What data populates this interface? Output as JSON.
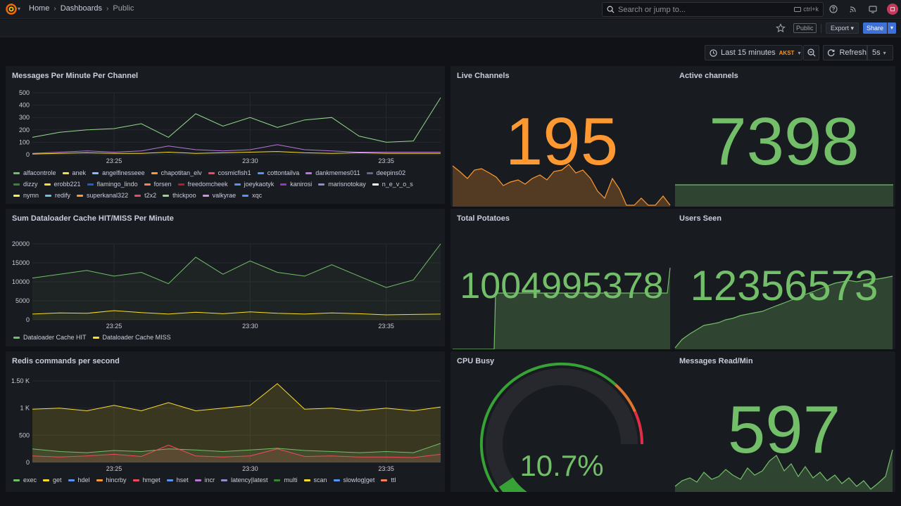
{
  "app": {
    "breadcrumb": [
      "Home",
      "Dashboards",
      "Public"
    ],
    "search_placeholder": "Search or jump to...",
    "search_shortcut": "ctrl+k",
    "icons": [
      "grafana-logo-icon",
      "help-icon",
      "rss-icon",
      "tv-icon",
      "avatar"
    ]
  },
  "toolbar": {
    "public_label": "Public",
    "export_label": "Export",
    "share_label": "Share"
  },
  "time": {
    "range_label": "Last 15 minutes",
    "timezone": "AKST",
    "refresh_label": "Refresh",
    "refresh_interval": "5s"
  },
  "colors": {
    "green": "#73bf69",
    "orange": "#ff9830",
    "yellow": "#fade2a",
    "blue": "#5794f2",
    "accent": "#3d71d9"
  },
  "panels": {
    "messages": {
      "title": "Messages Per Minute Per Channel",
      "legend": [
        {
          "name": "alfacontrole",
          "color": "#73bf69"
        },
        {
          "name": "anek",
          "color": "#fade2a"
        },
        {
          "name": "angelfinesseee",
          "color": "#8ab8ff"
        },
        {
          "name": "chapotitan_elv",
          "color": "#ff9830"
        },
        {
          "name": "cosmicfish1",
          "color": "#f2495c"
        },
        {
          "name": "cottontailva",
          "color": "#5794f2"
        },
        {
          "name": "dankmemes011",
          "color": "#b877d9"
        },
        {
          "name": "deepins02",
          "color": "#705da0"
        },
        {
          "name": "dizzy",
          "color": "#37872d"
        },
        {
          "name": "erobb221",
          "color": "#fade2a"
        },
        {
          "name": "flamingo_lindo",
          "color": "#1f60c4"
        },
        {
          "name": "forsen",
          "color": "#ff7f50"
        },
        {
          "name": "freedomcheek",
          "color": "#c4162a"
        },
        {
          "name": "joeykaotyk",
          "color": "#5794f2"
        },
        {
          "name": "kanirosi",
          "color": "#8f3bb8"
        },
        {
          "name": "marisnotokay",
          "color": "#8e8ec8"
        },
        {
          "name": "n_e_v_o_s",
          "color": "#ffffff"
        },
        {
          "name": "nymn",
          "color": "#ffee52"
        },
        {
          "name": "redify",
          "color": "#73bfde"
        },
        {
          "name": "superkanal322",
          "color": "#ff9830"
        },
        {
          "name": "t2x2",
          "color": "#f2495c"
        },
        {
          "name": "thickpoo",
          "color": "#96d98d"
        },
        {
          "name": "valkyrae",
          "color": "#ca95e5"
        },
        {
          "name": "xqc",
          "color": "#5794f2"
        }
      ]
    },
    "dataloader": {
      "title": "Sum Dataloader Cache HIT/MISS Per Minute",
      "legend": [
        {
          "name": "Dataloader Cache HIT",
          "color": "#73bf69"
        },
        {
          "name": "Dataloader Cache MISS",
          "color": "#fade2a"
        }
      ]
    },
    "redis": {
      "title": "Redis commands per second",
      "legend": [
        {
          "name": "exec",
          "color": "#73bf69"
        },
        {
          "name": "get",
          "color": "#fade2a"
        },
        {
          "name": "hdel",
          "color": "#5794f2"
        },
        {
          "name": "hincrby",
          "color": "#ff9830"
        },
        {
          "name": "hmget",
          "color": "#f2495c"
        },
        {
          "name": "hset",
          "color": "#5794f2"
        },
        {
          "name": "incr",
          "color": "#b877d9"
        },
        {
          "name": "latency|latest",
          "color": "#8e8ec8"
        },
        {
          "name": "multi",
          "color": "#37872d"
        },
        {
          "name": "scan",
          "color": "#fade2a"
        },
        {
          "name": "slowlog|get",
          "color": "#5794f2"
        },
        {
          "name": "ttl",
          "color": "#ff7f50"
        }
      ]
    },
    "live": {
      "title": "Live Channels",
      "value": "195",
      "color": "#ff9830"
    },
    "active": {
      "title": "Active channels",
      "value": "7398",
      "color": "#73bf69"
    },
    "potatoes": {
      "title": "Total Potatoes",
      "value": "1004995378",
      "color": "#73bf69"
    },
    "users": {
      "title": "Users Seen",
      "value": "12356573",
      "color": "#73bf69"
    },
    "cpu": {
      "title": "CPU Busy",
      "value": "10.7%",
      "percent": 10.7,
      "color": "#73bf69"
    },
    "msgread": {
      "title": "Messages Read/Min",
      "value": "597",
      "color": "#73bf69"
    }
  },
  "chart_data": [
    {
      "type": "line",
      "title": "Messages Per Minute Per Channel",
      "x": [
        "23:22",
        "23:23",
        "23:24",
        "23:25",
        "23:26",
        "23:27",
        "23:28",
        "23:29",
        "23:30",
        "23:31",
        "23:32",
        "23:33",
        "23:34",
        "23:35",
        "23:36",
        "23:37"
      ],
      "x_ticks": [
        "23:25",
        "23:30",
        "23:35"
      ],
      "y_ticks": [
        "0",
        "100",
        "200",
        "300",
        "400",
        "500"
      ],
      "ylim": [
        0,
        500
      ],
      "series": [
        {
          "name": "thickpoo",
          "values": [
            140,
            180,
            200,
            210,
            250,
            140,
            330,
            230,
            300,
            220,
            280,
            300,
            150,
            100,
            110,
            460
          ]
        },
        {
          "name": "dankmemes011",
          "values": [
            10,
            20,
            30,
            20,
            30,
            70,
            40,
            30,
            40,
            80,
            40,
            30,
            20,
            20,
            20,
            20
          ]
        },
        {
          "name": "anek",
          "values": [
            5,
            10,
            15,
            10,
            10,
            20,
            10,
            15,
            20,
            25,
            15,
            10,
            15,
            10,
            10,
            10
          ]
        }
      ]
    },
    {
      "type": "line",
      "title": "Sum Dataloader Cache HIT/MISS Per Minute",
      "x": [
        "23:22",
        "23:23",
        "23:24",
        "23:25",
        "23:26",
        "23:27",
        "23:28",
        "23:29",
        "23:30",
        "23:31",
        "23:32",
        "23:33",
        "23:34",
        "23:35",
        "23:36",
        "23:37"
      ],
      "x_ticks": [
        "23:25",
        "23:30",
        "23:35"
      ],
      "y_ticks": [
        "0",
        "5000",
        "10000",
        "15000",
        "20000"
      ],
      "ylim": [
        0,
        20000
      ],
      "series": [
        {
          "name": "Dataloader Cache HIT",
          "values": [
            11000,
            12000,
            13000,
            11500,
            12500,
            9500,
            16500,
            12000,
            15500,
            12500,
            11500,
            14500,
            11500,
            8500,
            10500,
            20000
          ]
        },
        {
          "name": "Dataloader Cache MISS",
          "values": [
            1500,
            1800,
            1700,
            2400,
            1900,
            1500,
            2000,
            1600,
            2100,
            1700,
            1500,
            1800,
            1600,
            1300,
            1400,
            1500
          ]
        }
      ]
    },
    {
      "type": "area",
      "title": "Redis commands per second",
      "x": [
        "23:22",
        "23:23",
        "23:24",
        "23:25",
        "23:26",
        "23:27",
        "23:28",
        "23:29",
        "23:30",
        "23:31",
        "23:32",
        "23:33",
        "23:34",
        "23:35",
        "23:36",
        "23:37"
      ],
      "x_ticks": [
        "23:25",
        "23:30",
        "23:35"
      ],
      "y_ticks": [
        "0",
        "500",
        "1 K",
        "1.50 K"
      ],
      "ylim": [
        0,
        1500
      ],
      "series": [
        {
          "name": "get",
          "values": [
            980,
            1000,
            950,
            1050,
            950,
            1100,
            950,
            1000,
            1050,
            1450,
            980,
            1000,
            950,
            1000,
            950,
            1020
          ]
        },
        {
          "name": "exec",
          "values": [
            250,
            200,
            180,
            220,
            200,
            250,
            230,
            200,
            230,
            260,
            220,
            200,
            180,
            200,
            180,
            350
          ]
        },
        {
          "name": "hmget",
          "values": [
            120,
            100,
            120,
            150,
            110,
            320,
            120,
            100,
            120,
            250,
            110,
            120,
            100,
            100,
            90,
            150
          ]
        }
      ]
    }
  ]
}
